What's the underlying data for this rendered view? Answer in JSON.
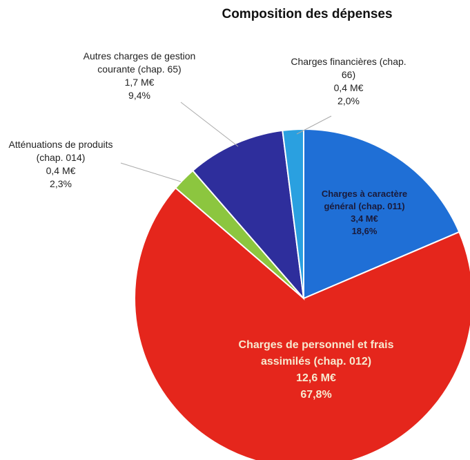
{
  "chart_data": {
    "type": "pie",
    "title": "Composition des dépenses",
    "categories": [
      "Charges à caractère général (chap. 011)",
      "Charges de personnel et frais assimilés (chap. 012)",
      "Atténuations de produits (chap. 014)",
      "Autres charges de gestion courante (chap. 65)",
      "Charges financières (chap. 66)"
    ],
    "values": [
      18.6,
      67.8,
      2.3,
      9.4,
      2.0
    ],
    "value_labels": [
      "18,6%",
      "67,8%",
      "2,3%",
      "9,4%",
      "2,0%"
    ],
    "amount_labels": [
      "3,4 M€",
      "12,6 M€",
      "0,4 M€",
      "1,7 M€",
      "0,4 M€"
    ],
    "colors": [
      "#1f6fd6",
      "#e5261c",
      "#8cc63f",
      "#2e2e9c",
      "#2aa0e0"
    ]
  }
}
